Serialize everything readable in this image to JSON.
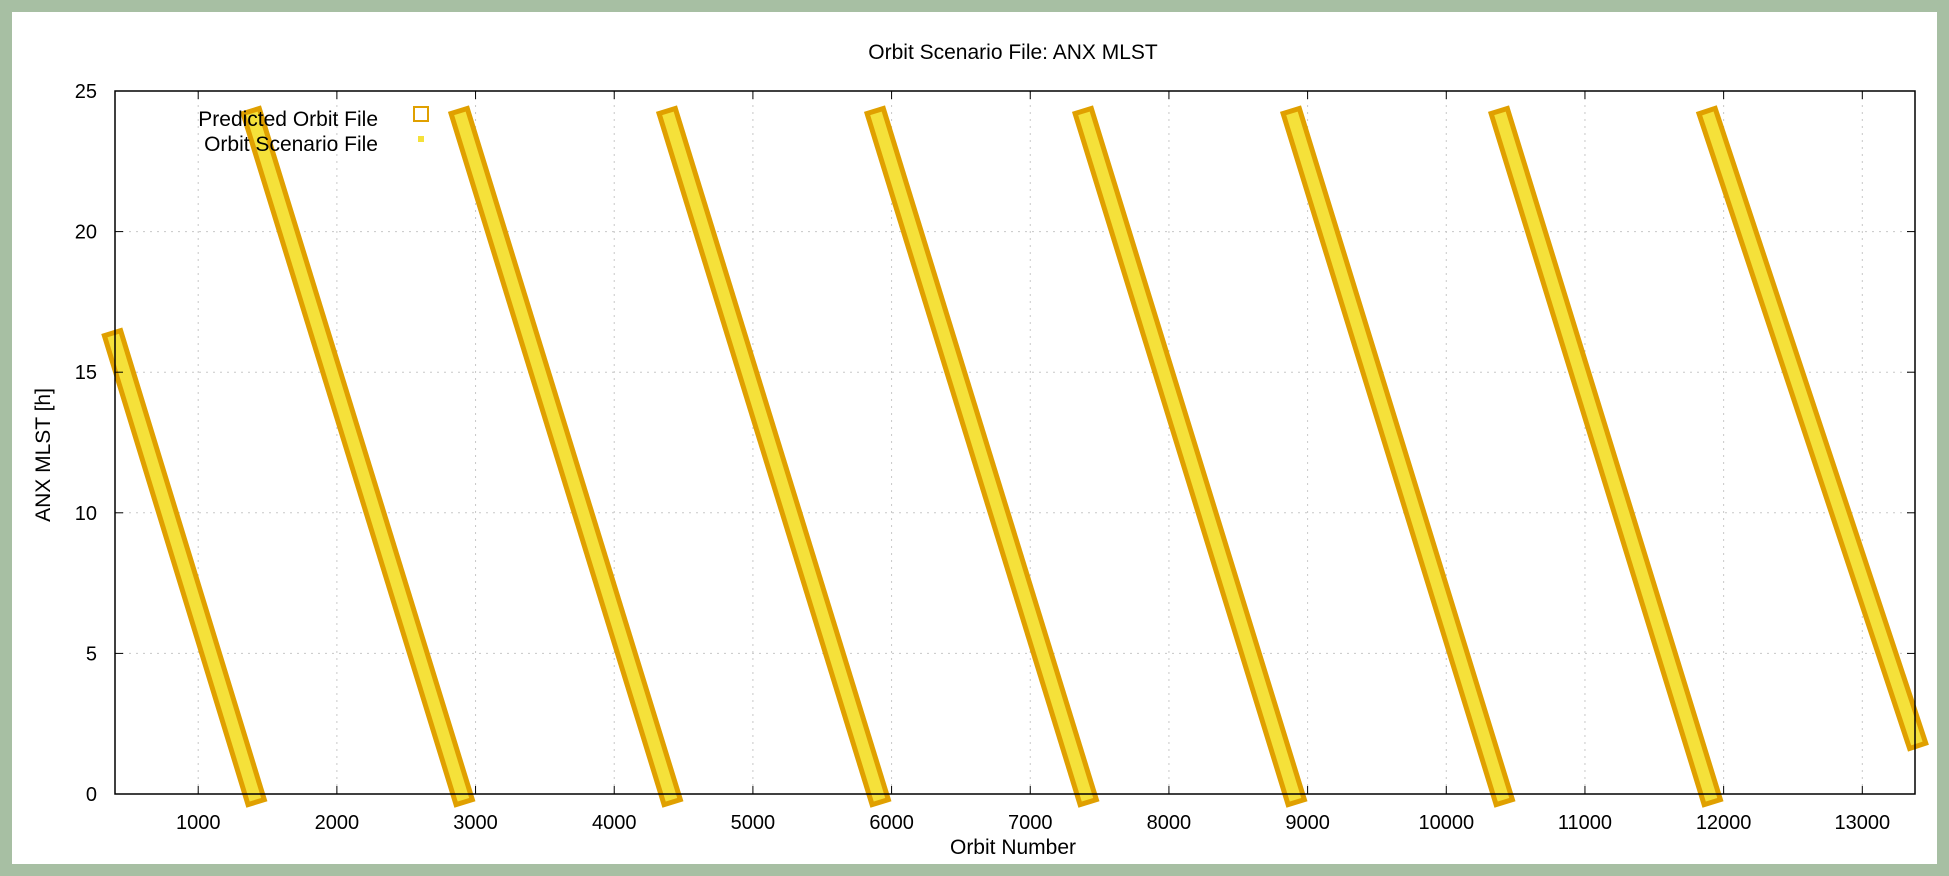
{
  "chart_data": {
    "type": "line",
    "title": "Orbit Scenario File: ANX MLST",
    "xlabel": "Orbit Number",
    "ylabel": "ANX MLST [h]",
    "xlim": [
      400,
      13380
    ],
    "ylim": [
      0,
      25
    ],
    "x_ticks": [
      1000,
      2000,
      3000,
      4000,
      5000,
      6000,
      7000,
      8000,
      9000,
      10000,
      11000,
      12000,
      13000
    ],
    "y_ticks": [
      0,
      5,
      10,
      15,
      20,
      25
    ],
    "grid": true,
    "legend_position": "top-left",
    "series": [
      {
        "name": "Predicted Orbit File",
        "marker": "open-square",
        "color": "#e0a000",
        "segments": [
          [
            [
              400,
              16.1
            ],
            [
              1400,
              0
            ]
          ],
          [
            [
              1400,
              24
            ],
            [
              2900,
              0
            ]
          ],
          [
            [
              2900,
              24
            ],
            [
              4400,
              0
            ]
          ],
          [
            [
              4400,
              24
            ],
            [
              5900,
              0
            ]
          ],
          [
            [
              5900,
              24
            ],
            [
              7400,
              0
            ]
          ],
          [
            [
              7400,
              24
            ],
            [
              8900,
              0
            ]
          ],
          [
            [
              8900,
              24
            ],
            [
              10400,
              0
            ]
          ],
          [
            [
              10400,
              24
            ],
            [
              11900,
              0
            ]
          ],
          [
            [
              11900,
              24
            ],
            [
              13380,
              2.0
            ]
          ]
        ]
      },
      {
        "name": "Orbit Scenario File",
        "marker": "small-filled-square",
        "color": "#f5e13a",
        "segments": [
          [
            [
              400,
              16.1
            ],
            [
              1400,
              0
            ]
          ],
          [
            [
              1400,
              24
            ],
            [
              2900,
              0
            ]
          ],
          [
            [
              2900,
              24
            ],
            [
              4400,
              0
            ]
          ],
          [
            [
              4400,
              24
            ],
            [
              5900,
              0
            ]
          ],
          [
            [
              5900,
              24
            ],
            [
              7400,
              0
            ]
          ],
          [
            [
              7400,
              24
            ],
            [
              8900,
              0
            ]
          ],
          [
            [
              8900,
              24
            ],
            [
              10400,
              0
            ]
          ],
          [
            [
              10400,
              24
            ],
            [
              11900,
              0
            ]
          ],
          [
            [
              11900,
              24
            ],
            [
              13380,
              2.0
            ]
          ]
        ]
      }
    ]
  }
}
